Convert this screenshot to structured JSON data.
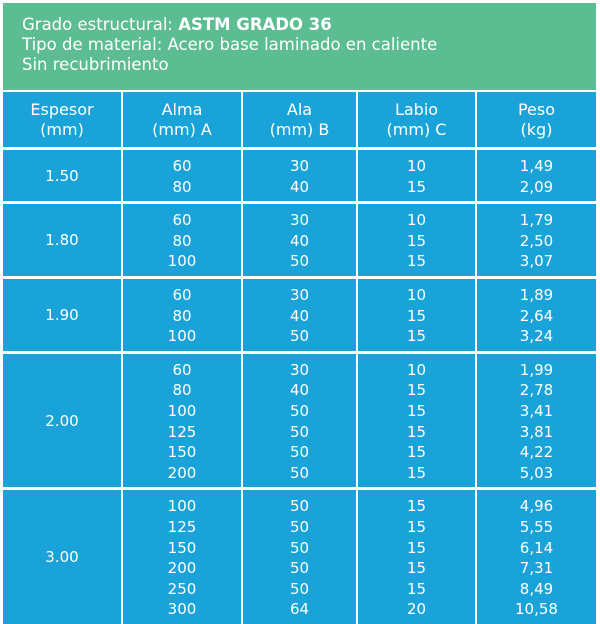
{
  "banner": {
    "line1_prefix": "Grado estructural: ",
    "line1_value": "ASTM GRADO 36",
    "line2": "Tipo de material: Acero base laminado en caliente",
    "line3": "Sin recubrimiento"
  },
  "colors": {
    "banner_green": "#5cbc92",
    "table_blue": "#1aa3d8",
    "grid_white": "#ffffff"
  },
  "table": {
    "headers": [
      {
        "line1": "Espesor",
        "line2": "(mm)"
      },
      {
        "line1": "Alma",
        "line2": "(mm) A"
      },
      {
        "line1": "Ala",
        "line2": "(mm) B"
      },
      {
        "line1": "Labio",
        "line2": "(mm) C"
      },
      {
        "line1": "Peso",
        "line2": "(kg)"
      }
    ],
    "groups": [
      {
        "espesor": "1.50",
        "rows": [
          {
            "alma": "60",
            "ala": "30",
            "labio": "10",
            "peso": "1,49"
          },
          {
            "alma": "80",
            "ala": "40",
            "labio": "15",
            "peso": "2,09"
          }
        ]
      },
      {
        "espesor": "1.80",
        "rows": [
          {
            "alma": "60",
            "ala": "30",
            "labio": "10",
            "peso": "1,79"
          },
          {
            "alma": "80",
            "ala": "40",
            "labio": "15",
            "peso": "2,50"
          },
          {
            "alma": "100",
            "ala": "50",
            "labio": "15",
            "peso": "3,07"
          }
        ]
      },
      {
        "espesor": "1.90",
        "rows": [
          {
            "alma": "60",
            "ala": "30",
            "labio": "10",
            "peso": "1,89"
          },
          {
            "alma": "80",
            "ala": "40",
            "labio": "15",
            "peso": "2,64"
          },
          {
            "alma": "100",
            "ala": "50",
            "labio": "15",
            "peso": "3,24"
          }
        ]
      },
      {
        "espesor": "2.00",
        "rows": [
          {
            "alma": "60",
            "ala": "30",
            "labio": "10",
            "peso": "1,99"
          },
          {
            "alma": "80",
            "ala": "40",
            "labio": "15",
            "peso": "2,78"
          },
          {
            "alma": "100",
            "ala": "50",
            "labio": "15",
            "peso": "3,41"
          },
          {
            "alma": "125",
            "ala": "50",
            "labio": "15",
            "peso": "3,81"
          },
          {
            "alma": "150",
            "ala": "50",
            "labio": "15",
            "peso": "4,22"
          },
          {
            "alma": "200",
            "ala": "50",
            "labio": "15",
            "peso": "5,03"
          }
        ]
      },
      {
        "espesor": "3.00",
        "rows": [
          {
            "alma": "100",
            "ala": "50",
            "labio": "15",
            "peso": "4,96"
          },
          {
            "alma": "125",
            "ala": "50",
            "labio": "15",
            "peso": "5,55"
          },
          {
            "alma": "150",
            "ala": "50",
            "labio": "15",
            "peso": "6,14"
          },
          {
            "alma": "200",
            "ala": "50",
            "labio": "15",
            "peso": "7,31"
          },
          {
            "alma": "250",
            "ala": "50",
            "labio": "15",
            "peso": "8,49"
          },
          {
            "alma": "300",
            "ala": "64",
            "labio": "20",
            "peso": "10,58"
          }
        ]
      }
    ]
  }
}
